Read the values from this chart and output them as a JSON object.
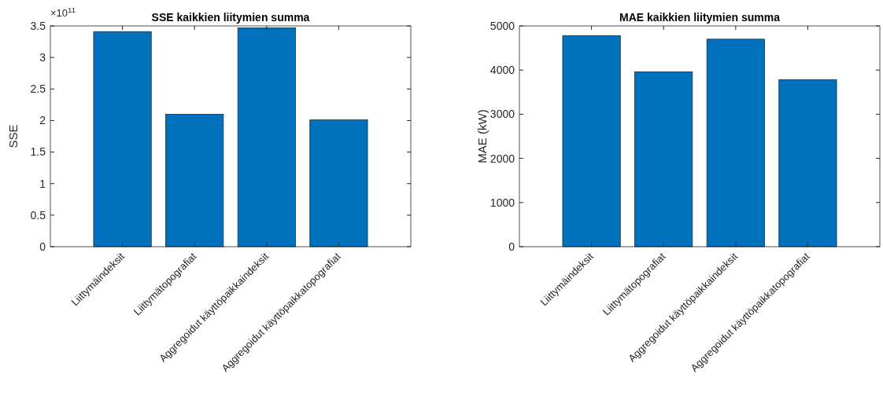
{
  "chart_data": [
    {
      "type": "bar",
      "title": "SSE kaikkien liitymien summa",
      "ylabel": "SSE",
      "categories": [
        "Liittymäindeksit",
        "Liittymätopografiat",
        "Aggregoidut käyttöpaikkaindeksit",
        "Aggregoidut käyttöpaikkatopografiat"
      ],
      "values": [
        3.41,
        2.1,
        3.47,
        2.01
      ],
      "color": "#0072bd",
      "ylim": [
        0,
        3.5
      ],
      "yticks": [
        0,
        0.5,
        1,
        1.5,
        2,
        2.5,
        3,
        3.5
      ],
      "annotations": [
        "×10$^{11}$"
      ],
      "grid": false
    },
    {
      "type": "bar",
      "title": "MAE kaikkien liitymien summa",
      "ylabel": "MAE (kW)",
      "categories": [
        "Liittymäindeksit",
        "Liittymätopografiat",
        "Aggregoidut käyttöpaikkaindeksit",
        "Aggregoidut käyttöpaikkatopografiat"
      ],
      "values": [
        4780,
        3960,
        4700,
        3780
      ],
      "color": "#0072bd",
      "ylim": [
        0,
        5000
      ],
      "yticks": [
        0,
        1000,
        2000,
        3000,
        4000,
        5000
      ],
      "grid": false
    }
  ]
}
